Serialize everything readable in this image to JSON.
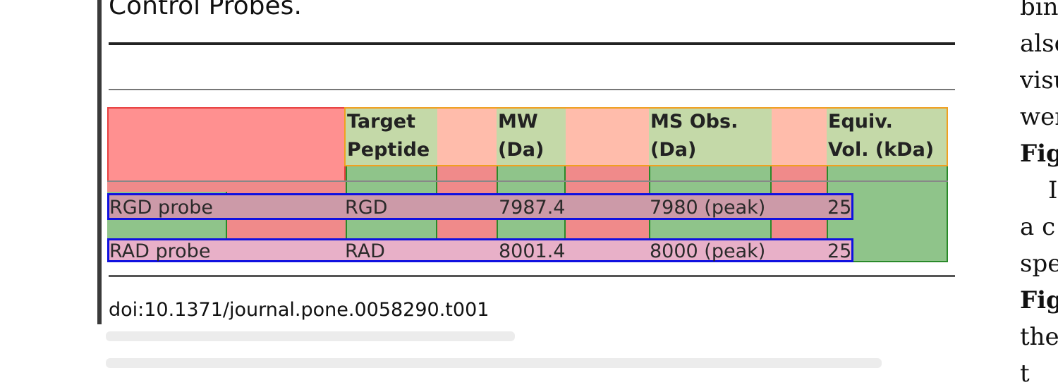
{
  "caption_tail": "Control Probes.",
  "table": {
    "headers": [
      "Target Peptide",
      "MW (Da)",
      "MS Obs. (Da)",
      "Equiv. Vol. (kDa)"
    ],
    "header_lines": [
      [
        "Target",
        "Peptide"
      ],
      [
        "MW",
        "(Da)"
      ],
      [
        "MS Obs.",
        "(Da)"
      ],
      [
        "Equiv.",
        "Vol. (kDa)"
      ]
    ],
    "rows": [
      {
        "probe": "RGD probe",
        "target": "RGD",
        "mw": "7987.4",
        "ms_obs": "7980 (peak)",
        "equiv_vol": "25"
      },
      {
        "probe": "RAD probe",
        "target": "RAD",
        "mw": "8001.4",
        "ms_obs": "8000 (peak)",
        "equiv_vol": "25"
      }
    ]
  },
  "doi": "doi:10.1371/journal.pone.0058290.t001",
  "right_column_fragments": [
    "bin",
    "also",
    "visu",
    "wer",
    "Fig",
    "I",
    "a c",
    "spe",
    "Fig",
    "the",
    "t"
  ]
}
